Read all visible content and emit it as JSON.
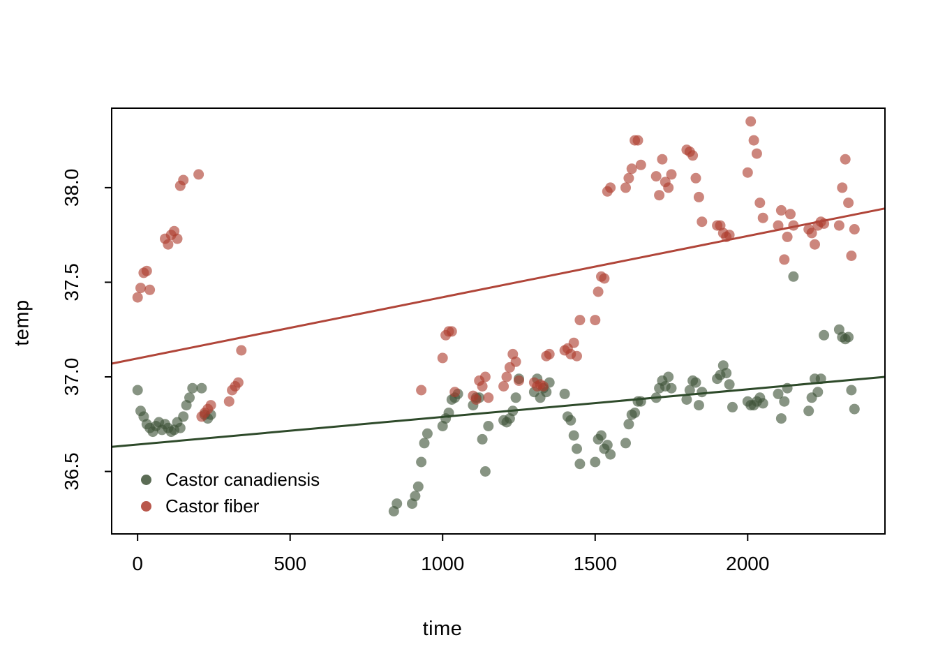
{
  "figure": {
    "background_color": "#ffffff",
    "box_color": "#000000"
  },
  "chart_data": {
    "type": "scatter",
    "title": "",
    "xlabel": "time",
    "ylabel": "temp",
    "xlim": [
      -85,
      2450
    ],
    "ylim": [
      36.17,
      38.42
    ],
    "grid": false,
    "xticks": {
      "values": [
        0,
        500,
        1000,
        1500,
        2000
      ],
      "labels": [
        "0",
        "500",
        "1000",
        "1500",
        "2000"
      ]
    },
    "yticks": {
      "values": [
        36.5,
        37.0,
        37.5,
        38.0
      ],
      "labels": [
        "36.5",
        "37.0",
        "37.5",
        "38.0"
      ]
    },
    "legend": {
      "position": "bottom-left",
      "box": false
    },
    "series": [
      {
        "name": "Castor canadiensis",
        "color": "#3e5237",
        "point_opacity": 0.62,
        "line_color": "#2e4a2a",
        "trend": {
          "x1": -85,
          "y1": 36.63,
          "x2": 2450,
          "y2": 37.0
        },
        "points": [
          [
            0,
            36.93
          ],
          [
            10,
            36.82
          ],
          [
            20,
            36.79
          ],
          [
            30,
            36.75
          ],
          [
            40,
            36.73
          ],
          [
            50,
            36.71
          ],
          [
            60,
            36.74
          ],
          [
            70,
            36.76
          ],
          [
            80,
            36.72
          ],
          [
            90,
            36.75
          ],
          [
            100,
            36.73
          ],
          [
            110,
            36.71
          ],
          [
            120,
            36.72
          ],
          [
            130,
            36.76
          ],
          [
            140,
            36.73
          ],
          [
            150,
            36.79
          ],
          [
            160,
            36.85
          ],
          [
            170,
            36.89
          ],
          [
            180,
            36.94
          ],
          [
            210,
            36.94
          ],
          [
            220,
            36.8
          ],
          [
            230,
            36.78
          ],
          [
            240,
            36.8
          ],
          [
            840,
            36.29
          ],
          [
            850,
            36.33
          ],
          [
            900,
            36.33
          ],
          [
            910,
            36.37
          ],
          [
            920,
            36.42
          ],
          [
            930,
            36.55
          ],
          [
            940,
            36.65
          ],
          [
            950,
            36.7
          ],
          [
            1000,
            36.74
          ],
          [
            1010,
            36.78
          ],
          [
            1020,
            36.81
          ],
          [
            1030,
            36.88
          ],
          [
            1040,
            36.89
          ],
          [
            1050,
            36.91
          ],
          [
            1100,
            36.85
          ],
          [
            1110,
            36.89
          ],
          [
            1120,
            36.89
          ],
          [
            1130,
            36.67
          ],
          [
            1140,
            36.5
          ],
          [
            1150,
            36.74
          ],
          [
            1200,
            36.77
          ],
          [
            1210,
            36.76
          ],
          [
            1220,
            36.78
          ],
          [
            1230,
            36.82
          ],
          [
            1240,
            36.89
          ],
          [
            1250,
            36.99
          ],
          [
            1300,
            36.92
          ],
          [
            1310,
            36.99
          ],
          [
            1320,
            36.89
          ],
          [
            1330,
            36.94
          ],
          [
            1340,
            36.92
          ],
          [
            1350,
            36.97
          ],
          [
            1400,
            36.91
          ],
          [
            1410,
            36.79
          ],
          [
            1420,
            36.77
          ],
          [
            1430,
            36.69
          ],
          [
            1440,
            36.62
          ],
          [
            1450,
            36.54
          ],
          [
            1500,
            36.55
          ],
          [
            1510,
            36.67
          ],
          [
            1520,
            36.69
          ],
          [
            1530,
            36.62
          ],
          [
            1540,
            36.64
          ],
          [
            1550,
            36.59
          ],
          [
            1600,
            36.65
          ],
          [
            1610,
            36.75
          ],
          [
            1620,
            36.8
          ],
          [
            1630,
            36.81
          ],
          [
            1640,
            36.87
          ],
          [
            1650,
            36.87
          ],
          [
            1700,
            36.89
          ],
          [
            1710,
            36.94
          ],
          [
            1720,
            36.98
          ],
          [
            1730,
            36.95
          ],
          [
            1740,
            37.0
          ],
          [
            1750,
            36.94
          ],
          [
            1800,
            36.88
          ],
          [
            1810,
            36.93
          ],
          [
            1820,
            36.98
          ],
          [
            1830,
            36.97
          ],
          [
            1840,
            36.85
          ],
          [
            1850,
            36.92
          ],
          [
            1900,
            36.99
          ],
          [
            1910,
            37.01
          ],
          [
            1920,
            37.06
          ],
          [
            1930,
            37.02
          ],
          [
            1940,
            36.96
          ],
          [
            1950,
            36.84
          ],
          [
            2000,
            36.87
          ],
          [
            2010,
            36.85
          ],
          [
            2020,
            36.85
          ],
          [
            2030,
            36.87
          ],
          [
            2040,
            36.89
          ],
          [
            2050,
            36.86
          ],
          [
            2100,
            36.91
          ],
          [
            2110,
            36.78
          ],
          [
            2120,
            36.87
          ],
          [
            2130,
            36.94
          ],
          [
            2150,
            37.53
          ],
          [
            2200,
            36.82
          ],
          [
            2210,
            36.89
          ],
          [
            2220,
            36.99
          ],
          [
            2230,
            36.92
          ],
          [
            2240,
            36.99
          ],
          [
            2250,
            37.22
          ],
          [
            2300,
            37.25
          ],
          [
            2310,
            37.21
          ],
          [
            2320,
            37.2
          ],
          [
            2330,
            37.21
          ],
          [
            2340,
            36.93
          ],
          [
            2350,
            36.83
          ]
        ]
      },
      {
        "name": "Castor fiber",
        "color": "#ad3b2d",
        "point_opacity": 0.62,
        "line_color": "#b04539",
        "trend": {
          "x1": -85,
          "y1": 37.07,
          "x2": 2450,
          "y2": 37.89
        },
        "points": [
          [
            0,
            37.42
          ],
          [
            10,
            37.47
          ],
          [
            20,
            37.55
          ],
          [
            30,
            37.56
          ],
          [
            40,
            37.46
          ],
          [
            90,
            37.73
          ],
          [
            100,
            37.7
          ],
          [
            110,
            37.75
          ],
          [
            120,
            37.77
          ],
          [
            130,
            37.73
          ],
          [
            140,
            38.01
          ],
          [
            150,
            38.04
          ],
          [
            200,
            38.07
          ],
          [
            210,
            36.79
          ],
          [
            220,
            36.81
          ],
          [
            230,
            36.83
          ],
          [
            240,
            36.85
          ],
          [
            300,
            36.87
          ],
          [
            310,
            36.93
          ],
          [
            320,
            36.95
          ],
          [
            330,
            36.97
          ],
          [
            340,
            37.14
          ],
          [
            930,
            36.93
          ],
          [
            1000,
            37.1
          ],
          [
            1010,
            37.22
          ],
          [
            1020,
            37.24
          ],
          [
            1030,
            37.24
          ],
          [
            1040,
            36.92
          ],
          [
            1100,
            36.9
          ],
          [
            1110,
            36.88
          ],
          [
            1120,
            36.98
          ],
          [
            1130,
            36.95
          ],
          [
            1140,
            37.0
          ],
          [
            1150,
            36.89
          ],
          [
            1200,
            36.95
          ],
          [
            1210,
            37.0
          ],
          [
            1220,
            37.05
          ],
          [
            1230,
            37.12
          ],
          [
            1240,
            37.08
          ],
          [
            1250,
            36.98
          ],
          [
            1300,
            36.97
          ],
          [
            1310,
            36.95
          ],
          [
            1320,
            36.96
          ],
          [
            1330,
            36.95
          ],
          [
            1340,
            37.11
          ],
          [
            1350,
            37.12
          ],
          [
            1400,
            37.14
          ],
          [
            1410,
            37.15
          ],
          [
            1420,
            37.12
          ],
          [
            1430,
            37.18
          ],
          [
            1440,
            37.11
          ],
          [
            1450,
            37.3
          ],
          [
            1500,
            37.3
          ],
          [
            1510,
            37.45
          ],
          [
            1520,
            37.53
          ],
          [
            1530,
            37.52
          ],
          [
            1540,
            37.98
          ],
          [
            1550,
            38.0
          ],
          [
            1600,
            38.0
          ],
          [
            1610,
            38.05
          ],
          [
            1620,
            38.1
          ],
          [
            1630,
            38.25
          ],
          [
            1640,
            38.25
          ],
          [
            1650,
            38.12
          ],
          [
            1700,
            38.06
          ],
          [
            1710,
            37.96
          ],
          [
            1720,
            38.15
          ],
          [
            1730,
            38.03
          ],
          [
            1740,
            38.0
          ],
          [
            1750,
            38.07
          ],
          [
            1800,
            38.2
          ],
          [
            1810,
            38.19
          ],
          [
            1820,
            38.17
          ],
          [
            1830,
            38.05
          ],
          [
            1840,
            37.95
          ],
          [
            1850,
            37.82
          ],
          [
            1900,
            37.8
          ],
          [
            1910,
            37.8
          ],
          [
            1920,
            37.76
          ],
          [
            1930,
            37.74
          ],
          [
            1940,
            37.75
          ],
          [
            2000,
            38.08
          ],
          [
            2010,
            38.35
          ],
          [
            2020,
            38.25
          ],
          [
            2030,
            38.18
          ],
          [
            2040,
            37.92
          ],
          [
            2050,
            37.84
          ],
          [
            2100,
            37.8
          ],
          [
            2110,
            37.88
          ],
          [
            2120,
            37.62
          ],
          [
            2130,
            37.74
          ],
          [
            2140,
            37.86
          ],
          [
            2150,
            37.8
          ],
          [
            2200,
            37.78
          ],
          [
            2210,
            37.76
          ],
          [
            2220,
            37.7
          ],
          [
            2230,
            37.8
          ],
          [
            2240,
            37.82
          ],
          [
            2250,
            37.81
          ],
          [
            2300,
            37.8
          ],
          [
            2310,
            38.0
          ],
          [
            2320,
            38.15
          ],
          [
            2330,
            37.92
          ],
          [
            2340,
            37.64
          ],
          [
            2350,
            37.78
          ]
        ]
      }
    ]
  }
}
